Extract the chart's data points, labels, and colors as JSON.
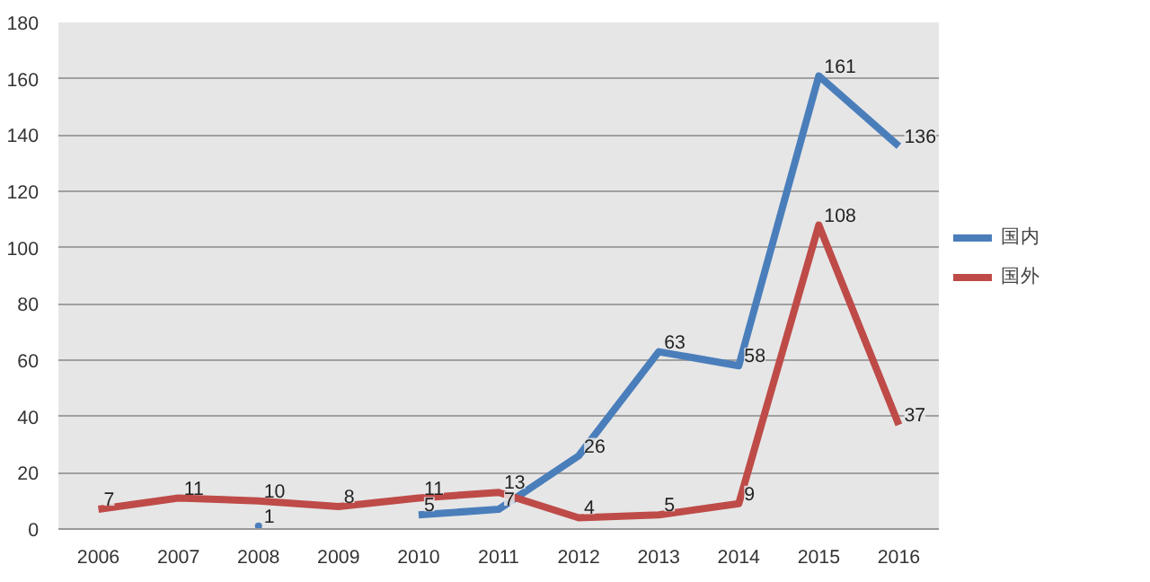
{
  "chart_data": {
    "type": "line",
    "categories": [
      "2006",
      "2007",
      "2008",
      "2009",
      "2010",
      "2011",
      "2012",
      "2013",
      "2014",
      "2015",
      "2016"
    ],
    "series": [
      {
        "name": "国内",
        "color": "#4a7ebb",
        "values": [
          null,
          null,
          1,
          null,
          5,
          7,
          26,
          63,
          58,
          161,
          136
        ]
      },
      {
        "name": "国外",
        "color": "#be4b48",
        "values": [
          7,
          11,
          10,
          8,
          11,
          13,
          4,
          5,
          9,
          108,
          37
        ]
      }
    ],
    "ylim": [
      0,
      180
    ],
    "yticks": [
      0,
      20,
      40,
      60,
      80,
      100,
      120,
      140,
      160,
      180
    ],
    "grid": "y",
    "legend": "right",
    "data_labels": true
  }
}
